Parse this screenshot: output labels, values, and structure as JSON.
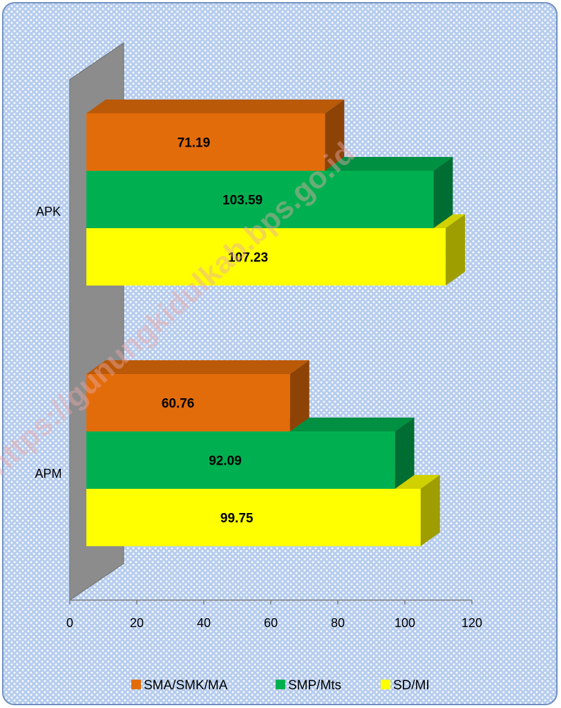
{
  "chart_data": {
    "type": "bar",
    "orientation": "horizontal",
    "style": "3d",
    "categories": [
      "APK",
      "APM"
    ],
    "series": [
      {
        "name": "SMA/SMK/MA",
        "color": "#e36c0a",
        "values": [
          71.19,
          60.76
        ]
      },
      {
        "name": "SMP/Mts",
        "color": "#00b050",
        "values": [
          103.59,
          92.09
        ]
      },
      {
        "name": "SD/MI",
        "color": "#ffff00",
        "values": [
          107.23,
          99.75
        ]
      }
    ],
    "data_labels": [
      [
        "71.19",
        "60.76"
      ],
      [
        "103.59",
        "92.09"
      ],
      [
        "107.23",
        "99.75"
      ]
    ],
    "xlim": [
      0,
      120
    ],
    "x_ticks": [
      "0",
      "20",
      "40",
      "60",
      "80",
      "100",
      "120"
    ],
    "legend_position": "bottom",
    "watermark": "https://gunungkidulkab.bps.go.id"
  }
}
